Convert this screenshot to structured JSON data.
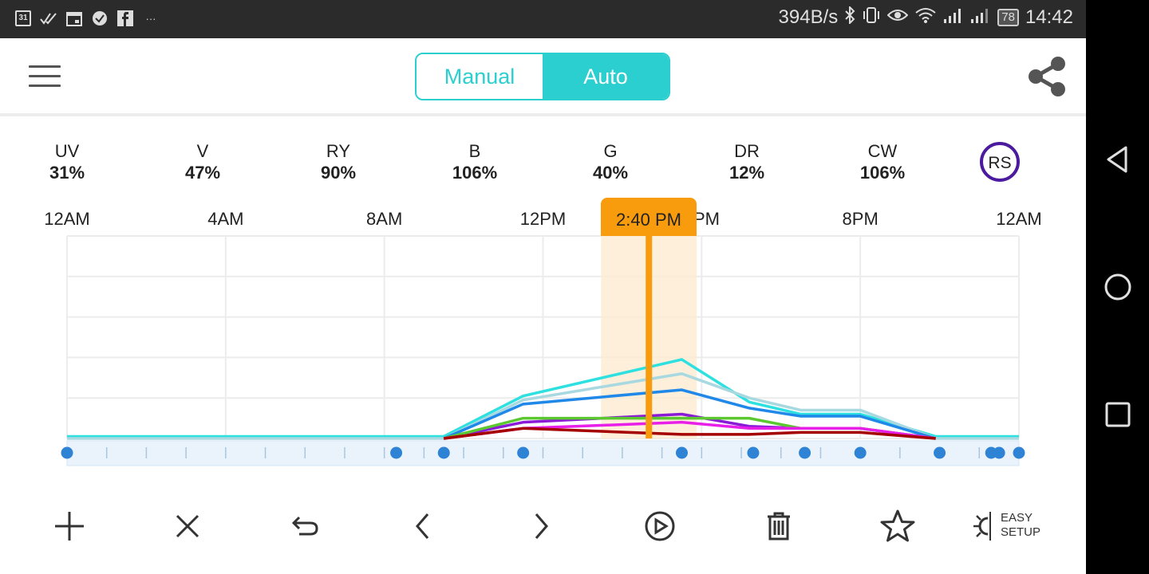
{
  "status_bar": {
    "left_icons": [
      "calendar-31-icon",
      "double-check-icon",
      "calendar-icon",
      "circle-check-icon",
      "facebook-icon",
      "more-icon"
    ],
    "calendar_day": "31",
    "network_speed": "394B/s",
    "battery": "78",
    "time": "14:42"
  },
  "header": {
    "mode_manual": "Manual",
    "mode_auto": "Auto",
    "active_mode": "Auto"
  },
  "channels": [
    {
      "name": "UV",
      "value": "31%"
    },
    {
      "name": "V",
      "value": "47%"
    },
    {
      "name": "RY",
      "value": "90%"
    },
    {
      "name": "B",
      "value": "106%"
    },
    {
      "name": "G",
      "value": "40%"
    },
    {
      "name": "DR",
      "value": "12%"
    },
    {
      "name": "CW",
      "value": "106%"
    }
  ],
  "rs_badge": "RS",
  "current_time": "2:40 PM",
  "chart_data": {
    "type": "line",
    "x_labels": [
      "12AM",
      "4AM",
      "8AM",
      "12PM",
      "4PM",
      "8PM",
      "12AM"
    ],
    "x_hours": [
      0,
      4,
      8,
      12,
      16,
      20,
      24
    ],
    "grid": true,
    "cursor_hour": 14.67,
    "ylim": [
      0,
      100
    ],
    "series": [
      {
        "color": "#2ee0e0",
        "x": [
          0,
          9.5,
          11.5,
          15.5,
          17.2,
          18.5,
          20,
          21.9,
          24
        ],
        "y": [
          1,
          1,
          21,
          39,
          18,
          12,
          12,
          1,
          1
        ]
      },
      {
        "color": "#a8d8e0",
        "x": [
          0,
          9.5,
          11.5,
          15.5,
          17.2,
          18.5,
          20,
          21.9,
          24
        ],
        "y": [
          0,
          0,
          19,
          32,
          20,
          14,
          14,
          0,
          0
        ]
      },
      {
        "color": "#1f88e8",
        "x": [
          9.5,
          11.5,
          15.5,
          17.2,
          18.5,
          20,
          21.9
        ],
        "y": [
          0,
          17,
          24,
          15,
          11,
          11,
          0
        ]
      },
      {
        "color": "#8a1ad6",
        "x": [
          9.5,
          11.5,
          15.5,
          17.2,
          18.5,
          20,
          21.9
        ],
        "y": [
          0,
          8,
          12,
          6,
          5,
          5,
          0
        ]
      },
      {
        "color": "#5cc830",
        "x": [
          9.5,
          11.5,
          15.5,
          17.2,
          18.5,
          20,
          21.9
        ],
        "y": [
          0,
          10,
          10,
          10,
          5,
          5,
          0
        ]
      },
      {
        "color": "#e81fe8",
        "x": [
          9.5,
          11.5,
          15.5,
          17.2,
          18.5,
          20,
          21.9
        ],
        "y": [
          0,
          5,
          8,
          5,
          5,
          5,
          0
        ]
      },
      {
        "color": "#a50000",
        "x": [
          9.5,
          11.5,
          15.5,
          17.2,
          18.5,
          20,
          21.9
        ],
        "y": [
          0,
          5,
          2,
          2,
          3,
          3,
          0
        ]
      }
    ],
    "keyframe_hours": [
      0,
      8.3,
      9.5,
      11.5,
      15.5,
      17.3,
      18.6,
      20,
      22,
      23.3,
      23.5,
      24
    ]
  },
  "toolbar": {
    "items": [
      "add-icon",
      "close-icon",
      "undo-icon",
      "prev-icon",
      "next-icon",
      "play-icon",
      "trash-icon",
      "star-icon",
      "easy-setup-icon"
    ],
    "easy_line1": "EASY",
    "easy_line2": "SETUP"
  }
}
